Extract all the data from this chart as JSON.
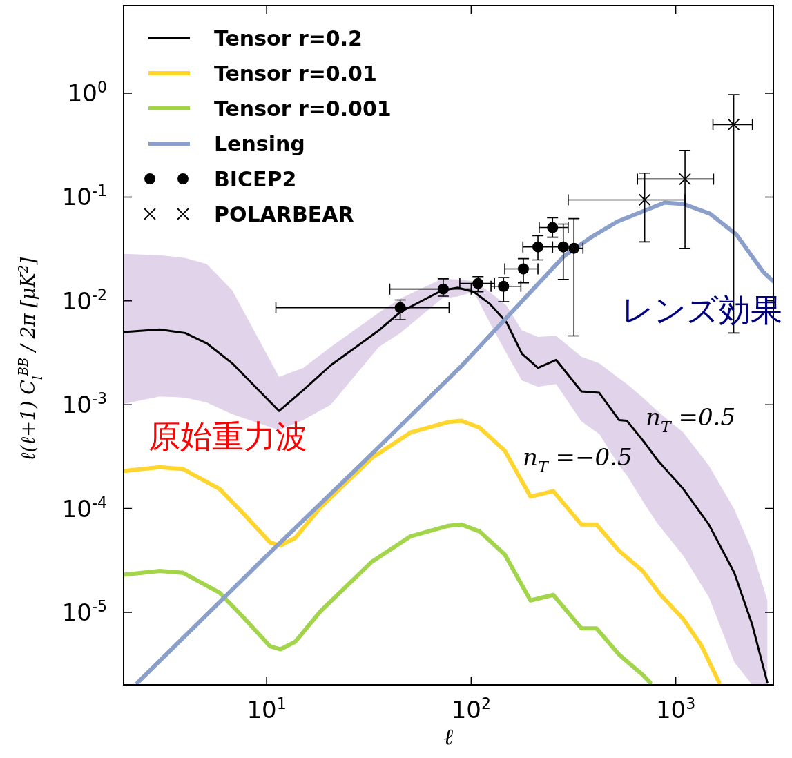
{
  "chart_data": {
    "type": "line",
    "xlabel": "ℓ",
    "ylabel": "ℓ(ℓ+1) C$_{l}$$^{BB}$ / 2π [μK$^{2}$]",
    "log": "xy",
    "xlim": [
      2,
      3000
    ],
    "ylim": [
      2e-06,
      7
    ],
    "xticks": [
      {
        "value": 10,
        "label": "10$^{1}$"
      },
      {
        "value": 100,
        "label": "10$^{2}$"
      },
      {
        "value": 1000,
        "label": "10$^{3}$"
      }
    ],
    "yticks": [
      {
        "value": 1e-05,
        "label": "10$^{-5}$"
      },
      {
        "value": 0.0001,
        "label": "10$^{-4}$"
      },
      {
        "value": 0.001,
        "label": "10$^{-3}$"
      },
      {
        "value": 0.01,
        "label": "10$^{-2}$"
      },
      {
        "value": 0.1,
        "label": "10$^{-1}$"
      },
      {
        "value": 1,
        "label": "10$^{0}$"
      }
    ],
    "grid": false,
    "legend": "top left",
    "series": [
      {
        "name": "Tensor r=0.2",
        "color": "#000000",
        "x": [
          2,
          3,
          4,
          5.1,
          6.8,
          11.5,
          15.1,
          20.6,
          35.4,
          45,
          72,
          86,
          103,
          123,
          149,
          177,
          212,
          260,
          346,
          423,
          529,
          577,
          705,
          817,
          1089,
          1452,
          1933,
          2365,
          2805
        ],
        "values": [
          0.005,
          0.0053,
          0.0049,
          0.0039,
          0.0025,
          0.00087,
          0.00138,
          0.0024,
          0.0052,
          0.0078,
          0.0126,
          0.0134,
          0.0122,
          0.0094,
          0.0062,
          0.0031,
          0.00226,
          0.0027,
          0.00134,
          0.0013,
          0.00071,
          0.0007,
          0.00043,
          0.00029,
          0.000154,
          7e-05,
          2.4e-05,
          7.6e-06,
          2.1e-06
        ],
        "lower": [
          0.00102,
          0.0012,
          0.00117,
          0.00105,
          0.00081,
          0.00057,
          0.00071,
          0.001,
          0.0036,
          0.0049,
          0.0105,
          0.011,
          0.0122,
          0.0062,
          0.0031,
          0.00171,
          0.00149,
          0.00158,
          0.00069,
          0.00052,
          0.000259,
          0.000209,
          0.00011,
          7.1e-05,
          3.5e-05,
          1.4e-05,
          3.3e-06,
          2e-06,
          2e-06
        ],
        "upper": [
          0.0284,
          0.0275,
          0.0259,
          0.0226,
          0.0126,
          0.00185,
          0.00226,
          0.0036,
          0.0077,
          0.0105,
          0.0163,
          0.0161,
          0.0154,
          0.0122,
          0.009,
          0.0052,
          0.0045,
          0.0046,
          0.0029,
          0.0025,
          0.00179,
          0.00158,
          0.00113,
          0.00086,
          0.00054,
          0.000259,
          9.8e-05,
          3.9e-05,
          1.3e-05
        ]
      },
      {
        "name": "Tensor r=0.01",
        "color": "#ffd52e",
        "x": [
          2,
          3,
          3.9,
          5.9,
          7.8,
          10.4,
          11.7,
          13.8,
          18.4,
          32.7,
          50.6,
          77.4,
          89.7,
          110,
          146,
          195,
          252,
          346,
          410,
          529,
          689,
          837,
          1089,
          1333,
          1630
        ],
        "values": [
          0.00023,
          0.00025,
          0.00024,
          0.000154,
          8.7e-05,
          4.7e-05,
          4.4e-05,
          5.2e-05,
          0.000103,
          0.000307,
          0.00054,
          0.00068,
          0.0007,
          0.0006,
          0.00036,
          0.00013,
          0.000147,
          7e-05,
          7e-05,
          3.9e-05,
          2.5e-05,
          1.5e-05,
          8.6e-06,
          4.8e-06,
          2.1e-06
        ]
      },
      {
        "name": "Tensor r=0.001",
        "color": "#a2d54a",
        "x": [
          2,
          3,
          3.9,
          5.9,
          7.8,
          10.4,
          11.7,
          13.8,
          18.4,
          32.7,
          50.6,
          77.4,
          89.7,
          110,
          146,
          195,
          252,
          346,
          410,
          529,
          689,
          750
        ],
        "values": [
          2.3e-05,
          2.5e-05,
          2.4e-05,
          1.54e-05,
          8.7e-06,
          4.7e-06,
          4.4e-06,
          5.2e-06,
          1.03e-05,
          3.07e-05,
          5.4e-05,
          6.8e-05,
          7e-05,
          6e-05,
          3.6e-05,
          1.3e-05,
          1.47e-05,
          7e-06,
          7e-06,
          3.9e-06,
          2.5e-06,
          2.1e-06
        ]
      },
      {
        "name": "Lensing",
        "color": "#8b9fcb",
        "x": [
          2.34,
          10,
          30,
          89.7,
          285,
          386,
          518,
          700,
          883,
          1089,
          1472,
          1978,
          2677,
          3000
        ],
        "values": [
          2.1e-06,
          3.5e-05,
          0.000284,
          0.00236,
          0.0271,
          0.041,
          0.058,
          0.0736,
          0.0885,
          0.0858,
          0.069,
          0.0436,
          0.019,
          0.0154
        ]
      },
      {
        "name": "BICEP2",
        "type": "scatter",
        "marker": "circle",
        "color": "#000000",
        "x": [
          45,
          73,
          108,
          144,
          180,
          212,
          250,
          282,
          318
        ],
        "values": [
          0.0086,
          0.013,
          0.0147,
          0.0138,
          0.0203,
          0.0331,
          0.0509,
          0.0331,
          0.0321
        ],
        "errors": [
          [
            0.0066,
            0.0102
          ],
          [
            0.0111,
            0.0163
          ],
          [
            0.0122,
            0.0171
          ],
          [
            0.0098,
            0.0168
          ],
          [
            0.0149,
            0.0255
          ],
          [
            0.0248,
            0.0424
          ],
          [
            0.041,
            0.0631
          ],
          [
            0.0161,
            0.055
          ],
          [
            0.0046,
            0.062
          ]
        ],
        "xerrors": [
          [
            11.1,
            78
          ],
          [
            40,
            100
          ],
          [
            88,
            130
          ],
          [
            125,
            175
          ],
          [
            146,
            212
          ],
          [
            179,
            250
          ],
          [
            215,
            298
          ],
          [
            250,
            282
          ],
          [
            318,
            352
          ]
        ]
      },
      {
        "name": "POLARBEAR",
        "type": "scatter",
        "marker": "cross",
        "color": "#000000",
        "x": [
          705,
          1110,
          1920
        ],
        "values": [
          0.094,
          0.149,
          0.5
        ],
        "errors": [
          [
            0.037,
            0.17
          ],
          [
            0.032,
            0.28
          ],
          [
            0.0049,
            0.97
          ]
        ],
        "xerrors": [
          [
            298,
            1110
          ],
          [
            650,
            1530
          ],
          [
            1520,
            2370
          ]
        ]
      }
    ],
    "annotations": [
      "n$_{T}$ =0.5",
      "n$_{T}$ =−0.5",
      "原始重力波",
      "レンズ効果"
    ]
  }
}
